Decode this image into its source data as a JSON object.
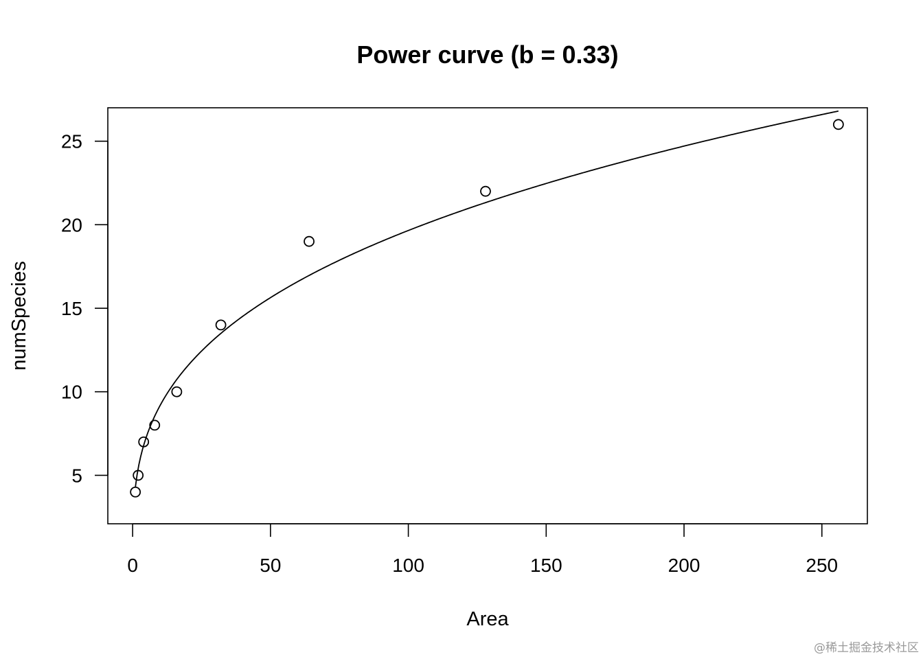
{
  "chart_data": {
    "type": "scatter",
    "title": "Power curve (b = 0.33)",
    "xlabel": "Area",
    "ylabel": "numSpecies",
    "xlim": [
      -9,
      266.5
    ],
    "ylim": [
      2.1,
      27.0
    ],
    "xticks": [
      0,
      50,
      100,
      150,
      200,
      250
    ],
    "yticks": [
      5,
      10,
      15,
      20,
      25
    ],
    "grid": false,
    "series": [
      {
        "type": "scatter",
        "marker": "open-circle",
        "x": [
          1,
          2,
          4,
          8,
          16,
          32,
          64,
          128,
          256
        ],
        "y": [
          4,
          5,
          7,
          8,
          10,
          14,
          19,
          22,
          26
        ]
      },
      {
        "type": "line",
        "formula": "y = a * x^b",
        "a": 4.3,
        "b": 0.33,
        "x_range": [
          1,
          256
        ]
      }
    ]
  },
  "watermark": "@稀土掘金技术社区"
}
